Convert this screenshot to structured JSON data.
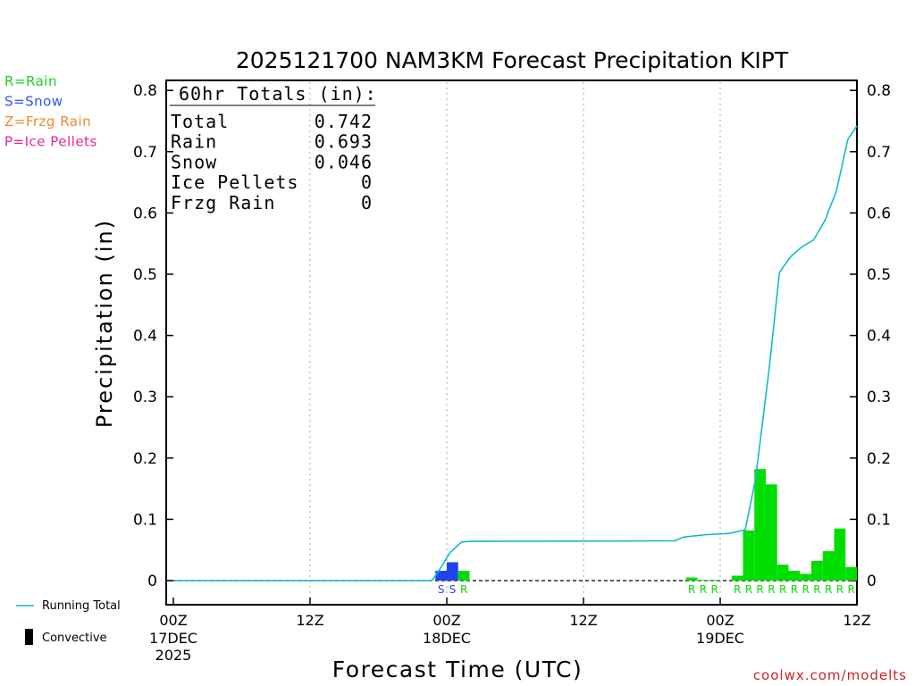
{
  "chart_data": {
    "type": "bar",
    "title": "2025121700 NAM3KM Forecast Precipitation KIPT",
    "xlabel": "Forecast Time (UTC)",
    "ylabel": "Precipitation (in)",
    "ylim": [
      0,
      0.82
    ],
    "xlim_hours": [
      0,
      60
    ],
    "yticks": [
      "0",
      "0.1",
      "0.2",
      "0.3",
      "0.4",
      "0.5",
      "0.6",
      "0.7",
      "0.8"
    ],
    "x_ticks": [
      {
        "hour": 0,
        "label": "00Z",
        "sub1": "17DEC",
        "sub2": "2025"
      },
      {
        "hour": 12,
        "label": "12Z",
        "sub1": "",
        "sub2": ""
      },
      {
        "hour": 24,
        "label": "00Z",
        "sub1": "18DEC",
        "sub2": ""
      },
      {
        "hour": 36,
        "label": "12Z",
        "sub1": "",
        "sub2": ""
      },
      {
        "hour": 48,
        "label": "00Z",
        "sub1": "19DEC",
        "sub2": ""
      },
      {
        "hour": 60,
        "label": "12Z",
        "sub1": "",
        "sub2": ""
      }
    ],
    "legend": [
      {
        "label": "R=Rain",
        "color": "#22cc22"
      },
      {
        "label": "S=Snow",
        "color": "#3355ee"
      },
      {
        "label": "Z=Frzg Rain",
        "color": "#ee8833"
      },
      {
        "label": "P=Ice Pellets",
        "color": "#ee2299"
      }
    ],
    "bottom_legend": {
      "running_total": "Running Total",
      "convective": "Convective"
    },
    "totals": {
      "heading": "60hr Totals (in):",
      "rows": [
        {
          "label": "Total",
          "value": "0.742"
        },
        {
          "label": "Rain",
          "value": "0.693"
        },
        {
          "label": "Snow",
          "value": "0.046"
        },
        {
          "label": "Ice Pellets",
          "value": "0"
        },
        {
          "label": "Frzg Rain",
          "value": "0"
        }
      ]
    },
    "bars": [
      {
        "hour": 23,
        "value": 0.016,
        "type": "snow"
      },
      {
        "hour": 24,
        "value": 0.03,
        "type": "snow"
      },
      {
        "hour": 25,
        "value": 0.016,
        "type": "rain"
      },
      {
        "hour": 45,
        "value": 0.005,
        "type": "rain"
      },
      {
        "hour": 46,
        "value": 0.001,
        "type": "rain"
      },
      {
        "hour": 47,
        "value": 0.001,
        "type": "rain"
      },
      {
        "hour": 49,
        "value": 0.008,
        "type": "rain"
      },
      {
        "hour": 50,
        "value": 0.082,
        "type": "rain"
      },
      {
        "hour": 51,
        "value": 0.182,
        "type": "rain"
      },
      {
        "hour": 52,
        "value": 0.157,
        "type": "rain"
      },
      {
        "hour": 53,
        "value": 0.026,
        "type": "rain"
      },
      {
        "hour": 54,
        "value": 0.016,
        "type": "rain"
      },
      {
        "hour": 55,
        "value": 0.011,
        "type": "rain"
      },
      {
        "hour": 56,
        "value": 0.032,
        "type": "rain"
      },
      {
        "hour": 57,
        "value": 0.048,
        "type": "rain"
      },
      {
        "hour": 58,
        "value": 0.085,
        "type": "rain"
      },
      {
        "hour": 59,
        "value": 0.022,
        "type": "rain"
      }
    ],
    "type_labels": [
      {
        "hour": 23.5,
        "text": "S",
        "type": "snow"
      },
      {
        "hour": 24.5,
        "text": "S",
        "type": "snow"
      },
      {
        "hour": 25.5,
        "text": "R",
        "type": "rain"
      },
      {
        "hour": 45.5,
        "text": "R",
        "type": "rain"
      },
      {
        "hour": 46.5,
        "text": "R",
        "type": "rain"
      },
      {
        "hour": 47.5,
        "text": "R",
        "type": "rain"
      },
      {
        "hour": 49.5,
        "text": "R",
        "type": "rain"
      },
      {
        "hour": 50.5,
        "text": "R",
        "type": "rain"
      },
      {
        "hour": 51.5,
        "text": "R",
        "type": "rain"
      },
      {
        "hour": 52.5,
        "text": "R",
        "type": "rain"
      },
      {
        "hour": 53.5,
        "text": "R",
        "type": "rain"
      },
      {
        "hour": 54.5,
        "text": "R",
        "type": "rain"
      },
      {
        "hour": 55.5,
        "text": "R",
        "type": "rain"
      },
      {
        "hour": 56.5,
        "text": "R",
        "type": "rain"
      },
      {
        "hour": 57.5,
        "text": "R",
        "type": "rain"
      },
      {
        "hour": 58.5,
        "text": "R",
        "type": "rain"
      },
      {
        "hour": 59.5,
        "text": "R",
        "type": "rain"
      }
    ],
    "running_total": [
      {
        "hour": 0,
        "value": 0
      },
      {
        "hour": 22.7,
        "value": 0
      },
      {
        "hour": 23.3,
        "value": 0.016
      },
      {
        "hour": 24.3,
        "value": 0.046
      },
      {
        "hour": 25.3,
        "value": 0.063
      },
      {
        "hour": 26,
        "value": 0.064
      },
      {
        "hour": 44,
        "value": 0.065
      },
      {
        "hour": 44.8,
        "value": 0.071
      },
      {
        "hour": 46.8,
        "value": 0.075
      },
      {
        "hour": 48.8,
        "value": 0.077
      },
      {
        "hour": 50.2,
        "value": 0.083
      },
      {
        "hour": 51.1,
        "value": 0.165
      },
      {
        "hour": 52.3,
        "value": 0.346
      },
      {
        "hour": 53.2,
        "value": 0.503
      },
      {
        "hour": 54.2,
        "value": 0.529
      },
      {
        "hour": 55.2,
        "value": 0.545
      },
      {
        "hour": 56.2,
        "value": 0.556
      },
      {
        "hour": 57.2,
        "value": 0.588
      },
      {
        "hour": 58.2,
        "value": 0.636
      },
      {
        "hour": 59.2,
        "value": 0.72
      },
      {
        "hour": 60,
        "value": 0.742
      }
    ],
    "colors": {
      "rain": "#00dd00",
      "snow": "#2244ee",
      "running_total": "#11bbcc",
      "axis": "#000000",
      "grid": "#aaaaaa"
    }
  },
  "footer": {
    "credit": "coolwx.com/modelts",
    "credit_color": "#cc2222"
  }
}
